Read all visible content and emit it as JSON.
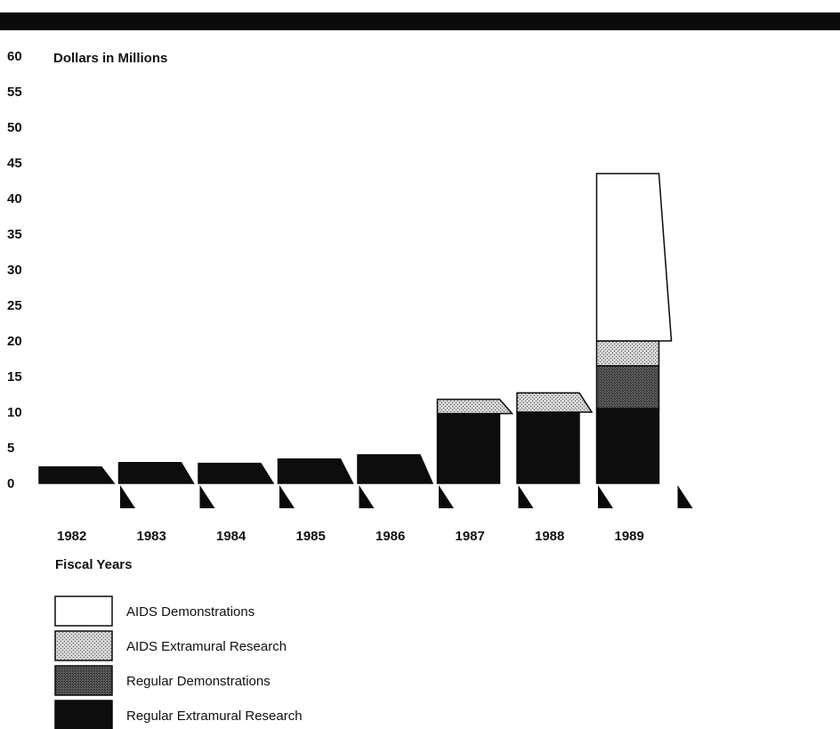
{
  "chart_data": {
    "type": "bar",
    "stacked": true,
    "ylabel": "Dollars in Millions",
    "xlabel": "Fiscal Years",
    "yticks": [
      0,
      5,
      10,
      15,
      20,
      25,
      30,
      35,
      40,
      45,
      50,
      55,
      60
    ],
    "ylim": [
      0,
      60
    ],
    "categories": [
      "1982",
      "1983",
      "1984",
      "1985",
      "1986",
      "1987",
      "1988",
      "1989"
    ],
    "series": [
      {
        "name": "Regular Extramural Research",
        "values": [
          2.3,
          2.9,
          2.8,
          3.4,
          4.0,
          9.8,
          10.0,
          10.5
        ]
      },
      {
        "name": "Regular Demonstrations",
        "values": [
          0,
          0,
          0,
          0,
          0,
          0,
          0,
          6.0
        ]
      },
      {
        "name": "AIDS Extramural Research",
        "values": [
          0,
          0,
          0,
          0,
          0,
          2.0,
          2.7,
          3.5
        ]
      },
      {
        "name": "AIDS Demonstrations",
        "values": [
          0,
          0,
          0,
          0,
          0,
          0,
          0,
          23.5
        ]
      }
    ],
    "legend_position": "bottom-left",
    "colors": {
      "Regular Extramural Research": "#0d0d0d",
      "Regular Demonstrations": "#4a4a4a",
      "AIDS Extramural Research": "#b9b9b9",
      "AIDS Demonstrations": "#ffffff"
    }
  }
}
